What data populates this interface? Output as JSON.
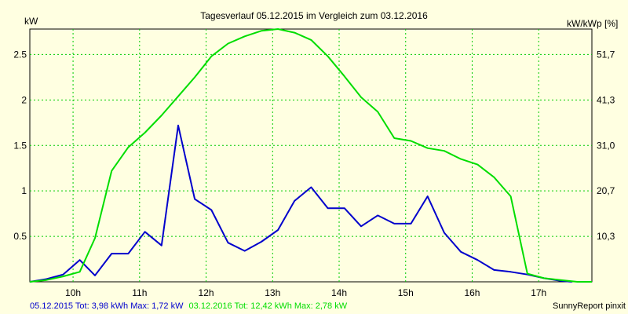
{
  "chart_data": {
    "type": "line",
    "title": "Tagesverlauf 05.12.2015 im Vergleich zum 03.12.2016",
    "ylabel_left": "kW",
    "ylabel_right": "kW/kWp [%]",
    "xlim": [
      9.35,
      17.8
    ],
    "ylim": [
      0,
      2.78
    ],
    "x_ticks": [
      10,
      11,
      12,
      13,
      14,
      15,
      16,
      17
    ],
    "x_tick_labels": [
      "10h",
      "11h",
      "12h",
      "13h",
      "14h",
      "15h",
      "16h",
      "17h"
    ],
    "y_left_ticks": [
      0.5,
      1,
      1.5,
      2,
      2.5
    ],
    "y_left_tick_labels": [
      "0.5",
      "1",
      "1.5",
      "2",
      "2.5"
    ],
    "y_right_tick_labels": [
      "10,3",
      "20,7",
      "31,0",
      "41,3",
      "51,7"
    ],
    "grid": true,
    "series": [
      {
        "name": "05.12.2015",
        "color": "#0000cc",
        "x": [
          9.35,
          9.6,
          9.85,
          10.1,
          10.33,
          10.58,
          10.83,
          11.08,
          11.33,
          11.58,
          11.83,
          12.08,
          12.33,
          12.58,
          12.83,
          13.08,
          13.33,
          13.58,
          13.83,
          14.08,
          14.33,
          14.58,
          14.83,
          15.08,
          15.33,
          15.58,
          15.83,
          16.08,
          16.33,
          16.58,
          16.83,
          17.08,
          17.33,
          17.5
        ],
        "values": [
          0.0,
          0.03,
          0.08,
          0.24,
          0.07,
          0.31,
          0.31,
          0.55,
          0.4,
          1.72,
          0.91,
          0.79,
          0.43,
          0.34,
          0.44,
          0.57,
          0.89,
          1.04,
          0.81,
          0.81,
          0.61,
          0.73,
          0.64,
          0.64,
          0.94,
          0.54,
          0.33,
          0.24,
          0.13,
          0.11,
          0.08,
          0.04,
          0.01,
          0.0
        ]
      },
      {
        "name": "03.12.2016",
        "color": "#00dd00",
        "x": [
          9.35,
          9.6,
          9.85,
          10.1,
          10.33,
          10.58,
          10.83,
          11.08,
          11.33,
          11.58,
          11.83,
          12.08,
          12.33,
          12.58,
          12.83,
          13.08,
          13.33,
          13.58,
          13.83,
          14.08,
          14.33,
          14.58,
          14.83,
          15.08,
          15.33,
          15.58,
          15.83,
          16.08,
          16.33,
          16.58,
          16.83,
          17.08,
          17.33,
          17.58,
          17.8
        ],
        "values": [
          0.0,
          0.02,
          0.06,
          0.11,
          0.48,
          1.22,
          1.48,
          1.64,
          1.83,
          2.04,
          2.25,
          2.48,
          2.62,
          2.7,
          2.76,
          2.78,
          2.74,
          2.66,
          2.48,
          2.26,
          2.03,
          1.87,
          1.58,
          1.55,
          1.47,
          1.44,
          1.35,
          1.29,
          1.15,
          0.94,
          0.09,
          0.04,
          0.02,
          0.0,
          0.0
        ]
      }
    ]
  },
  "footer": {
    "series1_text": "05.12.2015 Tot: 3,98 kWh Max: 1,72 kW",
    "series2_text": "03.12.2016 Tot: 12,42 kWh Max: 2,78 kW",
    "brand": "SunnyReport pinxit"
  }
}
